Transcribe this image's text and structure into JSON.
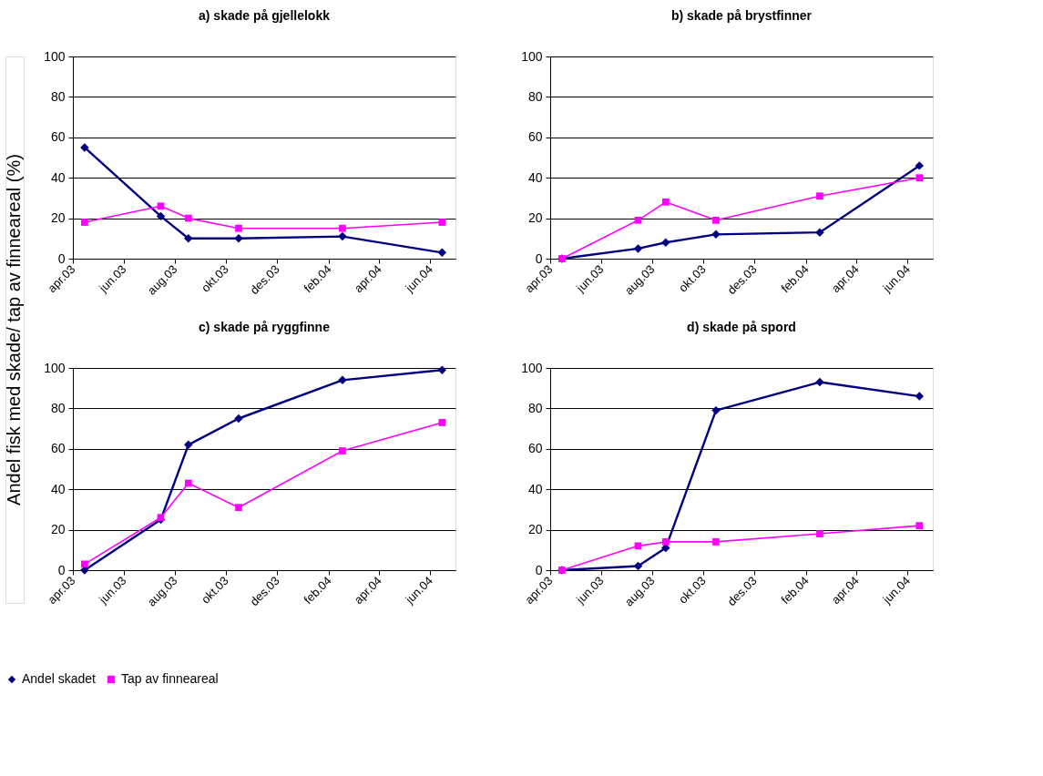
{
  "chart_data": [
    {
      "type": "line",
      "title": "a) skade på gjellelokk",
      "ylabel": "Andel fisk med skade/ tap av finneareal (%)",
      "x": [
        "2003-04-15",
        "2003-07-15",
        "2003-08-17",
        "2003-10-16",
        "2004-02-17",
        "2004-06-15"
      ],
      "series": [
        {
          "color": "#000080",
          "marker": "diamond",
          "values": [
            55,
            21,
            10,
            10,
            11,
            3
          ]
        },
        {
          "color": "#ff00ff",
          "marker": "square",
          "values": [
            18,
            26,
            20,
            15,
            15,
            18
          ]
        }
      ],
      "xlim": [
        "2003-04-01",
        "2004-07-01"
      ],
      "xticks": [
        {
          "value": "2003-04-01",
          "label": "apr.03"
        },
        {
          "value": "2003-06-01",
          "label": "jun.03"
        },
        {
          "value": "2003-08-01",
          "label": "aug.03"
        },
        {
          "value": "2003-10-01",
          "label": "okt.03"
        },
        {
          "value": "2003-12-01",
          "label": "des.03"
        },
        {
          "value": "2004-02-01",
          "label": "feb.04"
        },
        {
          "value": "2004-04-01",
          "label": "apr.04"
        },
        {
          "value": "2004-06-01",
          "label": "jun.04"
        }
      ],
      "ylim": [
        0,
        100
      ],
      "yticks": [
        0,
        20,
        40,
        60,
        80,
        100
      ],
      "grid": "y"
    },
    {
      "type": "line",
      "title": "b) skade på brystfinner",
      "x": [
        "2003-04-15",
        "2003-07-15",
        "2003-08-17",
        "2003-10-16",
        "2004-02-17",
        "2004-06-15"
      ],
      "series": [
        {
          "color": "#000080",
          "marker": "diamond",
          "values": [
            0,
            5,
            8,
            12,
            13,
            46
          ]
        },
        {
          "color": "#ff00ff",
          "marker": "square",
          "values": [
            0,
            19,
            28,
            19,
            31,
            40
          ]
        }
      ],
      "xlim": [
        "2003-04-01",
        "2004-07-01"
      ],
      "xticks": [
        {
          "value": "2003-04-01",
          "label": "apr.03"
        },
        {
          "value": "2003-06-01",
          "label": "jun.03"
        },
        {
          "value": "2003-08-01",
          "label": "aug.03"
        },
        {
          "value": "2003-10-01",
          "label": "okt.03"
        },
        {
          "value": "2003-12-01",
          "label": "des.03"
        },
        {
          "value": "2004-02-01",
          "label": "feb.04"
        },
        {
          "value": "2004-04-01",
          "label": "apr.04"
        },
        {
          "value": "2004-06-01",
          "label": "jun.04"
        }
      ],
      "ylim": [
        0,
        100
      ],
      "yticks": [
        0,
        20,
        40,
        60,
        80,
        100
      ],
      "grid": "y"
    },
    {
      "type": "line",
      "title": "c) skade på ryggfinne",
      "x": [
        "2003-04-15",
        "2003-07-15",
        "2003-08-17",
        "2003-10-16",
        "2004-02-17",
        "2004-06-15"
      ],
      "series": [
        {
          "name": "Andel skadet",
          "color": "#000080",
          "marker": "diamond",
          "values": [
            0,
            25,
            62,
            75,
            94,
            99
          ]
        },
        {
          "name": "Tap av finneareal",
          "color": "#ff00ff",
          "marker": "square",
          "values": [
            3,
            26,
            43,
            31,
            59,
            73
          ]
        }
      ],
      "xlim": [
        "2003-04-01",
        "2004-07-01"
      ],
      "xticks": [
        {
          "value": "2003-04-01",
          "label": "apr.03"
        },
        {
          "value": "2003-06-01",
          "label": "jun.03"
        },
        {
          "value": "2003-08-01",
          "label": "aug.03"
        },
        {
          "value": "2003-10-01",
          "label": "okt.03"
        },
        {
          "value": "2003-12-01",
          "label": "des.03"
        },
        {
          "value": "2004-02-01",
          "label": "feb.04"
        },
        {
          "value": "2004-04-01",
          "label": "apr.04"
        },
        {
          "value": "2004-06-01",
          "label": "jun.04"
        }
      ],
      "ylim": [
        0,
        100
      ],
      "yticks": [
        0,
        20,
        40,
        60,
        80,
        100
      ],
      "grid": "y",
      "legend": "bottom"
    },
    {
      "type": "line",
      "title": "d) skade på spord",
      "x": [
        "2003-04-15",
        "2003-07-15",
        "2003-08-17",
        "2003-10-16",
        "2004-02-17",
        "2004-06-15"
      ],
      "series": [
        {
          "color": "#000080",
          "marker": "diamond",
          "values": [
            0,
            2,
            11,
            79,
            93,
            86
          ]
        },
        {
          "color": "#ff00ff",
          "marker": "square",
          "values": [
            0,
            12,
            14,
            14,
            18,
            22
          ]
        }
      ],
      "xlim": [
        "2003-04-01",
        "2004-07-01"
      ],
      "xticks": [
        {
          "value": "2003-04-01",
          "label": "apr.03"
        },
        {
          "value": "2003-06-01",
          "label": "jun.03"
        },
        {
          "value": "2003-08-01",
          "label": "aug.03"
        },
        {
          "value": "2003-10-01",
          "label": "okt.03"
        },
        {
          "value": "2003-12-01",
          "label": "des.03"
        },
        {
          "value": "2004-02-01",
          "label": "feb.04"
        },
        {
          "value": "2004-04-01",
          "label": "apr.04"
        },
        {
          "value": "2004-06-01",
          "label": "jun.04"
        }
      ],
      "ylim": [
        0,
        100
      ],
      "yticks": [
        0,
        20,
        40,
        60,
        80,
        100
      ],
      "grid": "y"
    }
  ]
}
